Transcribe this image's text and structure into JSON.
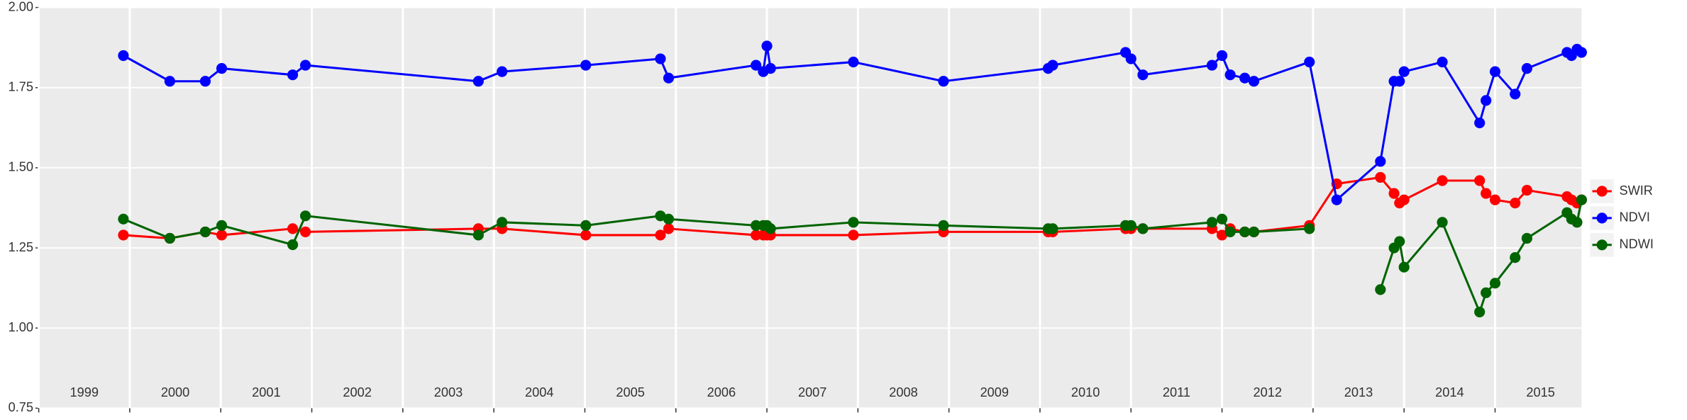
{
  "chart_data": {
    "type": "line",
    "x": [
      1999.93,
      2000.44,
      2000.83,
      2001.01,
      2001.79,
      2001.93,
      2003.83,
      2004.09,
      2005.01,
      2005.83,
      2005.92,
      2006.88,
      2006.96,
      2007.0,
      2007.04,
      2007.95,
      2008.94,
      2010.09,
      2010.14,
      2010.94,
      2011.0,
      2011.13,
      2011.89,
      2012.0,
      2012.09,
      2012.25,
      2012.35,
      2012.96,
      2013.26,
      2013.74,
      2013.89,
      2013.95,
      2014.0,
      2014.42,
      2014.83,
      2014.9,
      2015.0,
      2015.22,
      2015.35,
      2015.79,
      2015.84,
      2015.9,
      2015.95
    ],
    "series": [
      {
        "name": "SWIR",
        "color": "#ff0000",
        "values": [
          1.29,
          1.28,
          1.3,
          1.29,
          1.31,
          1.3,
          1.31,
          1.31,
          1.29,
          1.29,
          1.31,
          1.29,
          1.29,
          1.29,
          1.29,
          1.29,
          1.3,
          1.3,
          1.3,
          1.31,
          1.31,
          1.31,
          1.31,
          1.29,
          1.31,
          1.3,
          1.3,
          1.32,
          1.45,
          1.47,
          1.42,
          1.39,
          1.4,
          1.46,
          1.46,
          1.42,
          1.4,
          1.39,
          1.43,
          1.41,
          1.4,
          1.39,
          1.4
        ]
      },
      {
        "name": "NDVI",
        "color": "#0000ff",
        "values": [
          1.85,
          1.77,
          1.77,
          1.81,
          1.79,
          1.82,
          1.77,
          1.8,
          1.82,
          1.84,
          1.78,
          1.82,
          1.8,
          1.88,
          1.81,
          1.83,
          1.77,
          1.81,
          1.82,
          1.86,
          1.84,
          1.79,
          1.82,
          1.85,
          1.79,
          1.78,
          1.77,
          1.83,
          1.4,
          1.52,
          1.77,
          1.77,
          1.8,
          1.83,
          1.64,
          1.71,
          1.8,
          1.73,
          1.81,
          1.86,
          1.85,
          1.87,
          1.86
        ]
      },
      {
        "name": "NDWI",
        "color": "#006400",
        "values": [
          1.34,
          1.28,
          1.3,
          1.32,
          1.26,
          1.35,
          1.29,
          1.33,
          1.32,
          1.35,
          1.34,
          1.32,
          1.32,
          1.32,
          1.31,
          1.33,
          1.32,
          1.31,
          1.31,
          1.32,
          1.32,
          1.31,
          1.33,
          1.34,
          1.3,
          1.3,
          1.3,
          1.31,
          null,
          1.12,
          1.25,
          1.27,
          1.19,
          1.33,
          1.05,
          1.11,
          1.14,
          1.22,
          1.28,
          1.36,
          1.34,
          1.33,
          1.4
        ]
      }
    ],
    "xlim": [
      1999,
      2015.95
    ],
    "xticks": [
      1999,
      2000,
      2001,
      2002,
      2003,
      2004,
      2005,
      2006,
      2007,
      2008,
      2009,
      2010,
      2011,
      2012,
      2013,
      2014,
      2015
    ],
    "ylim": [
      0.75,
      2.0
    ],
    "yticks": [
      0.75,
      {
        "value": 1.0,
        "label": "1.00"
      },
      1.25,
      {
        "value": 1.5,
        "label": "1.50"
      },
      1.75,
      {
        "value": 2.0,
        "label": "2.00"
      }
    ],
    "grid": true,
    "legend": "right"
  }
}
